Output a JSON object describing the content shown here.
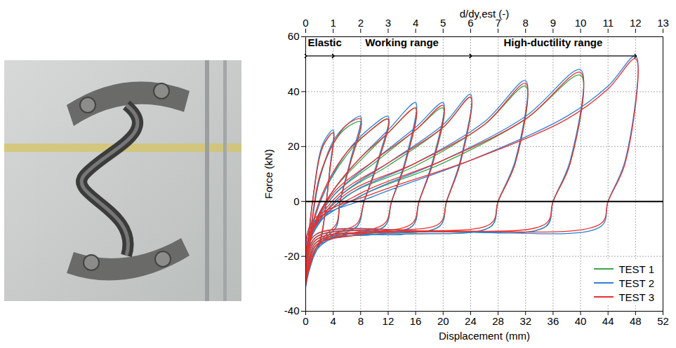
{
  "chart_data": {
    "type": "line",
    "xlabel": "Displacement (mm)",
    "ylabel": "Force (kN)",
    "x2label": "d/dy,est (-)",
    "xlim": [
      0,
      52
    ],
    "xticks": [
      0,
      4,
      8,
      12,
      16,
      20,
      24,
      28,
      32,
      36,
      40,
      44,
      48,
      52
    ],
    "x2lim": [
      0,
      13
    ],
    "x2ticks": [
      0,
      1,
      2,
      3,
      4,
      5,
      6,
      7,
      8,
      9,
      10,
      11,
      12,
      13
    ],
    "ylim": [
      -40,
      60
    ],
    "yticks": [
      -40,
      -20,
      0,
      20,
      40,
      60
    ],
    "grid": true,
    "legend": "bottom-right",
    "annotations": [
      {
        "text": "Elastic",
        "from": 0,
        "to": 4,
        "y": 53
      },
      {
        "text": "Working range",
        "from": 4,
        "to": 24,
        "y": 53
      },
      {
        "text": "High-ductility range",
        "from": 24,
        "to": 48,
        "y": 53
      }
    ],
    "series": [
      {
        "name": "TEST 1",
        "color": "#3aa64a",
        "values": [
          [
            0,
            -25
          ],
          [
            1,
            0
          ],
          [
            2.5,
            20
          ],
          [
            4,
            25
          ],
          [
            3.5,
            11
          ],
          [
            3,
            0
          ],
          [
            2.2,
            -13
          ],
          [
            1,
            -20
          ],
          [
            0,
            -27
          ],
          [
            1,
            -6
          ],
          [
            2,
            8
          ],
          [
            4,
            21
          ],
          [
            6,
            27
          ],
          [
            8,
            29
          ],
          [
            6.5,
            14
          ],
          [
            5,
            0
          ],
          [
            4.5,
            -9
          ],
          [
            3,
            -13
          ],
          [
            1.5,
            -17
          ],
          [
            0,
            -28
          ],
          [
            1,
            -9
          ],
          [
            3,
            5
          ],
          [
            6,
            17
          ],
          [
            9,
            25
          ],
          [
            12,
            30
          ],
          [
            10.5,
            14
          ],
          [
            8.5,
            0
          ],
          [
            7.5,
            -9
          ],
          [
            4,
            -12
          ],
          [
            1.5,
            -17
          ],
          [
            0,
            -29
          ],
          [
            1,
            -10
          ],
          [
            4,
            4
          ],
          [
            8,
            15
          ],
          [
            12,
            25
          ],
          [
            16,
            34
          ],
          [
            14.5,
            14
          ],
          [
            12.5,
            0
          ],
          [
            11.5,
            -9
          ],
          [
            6,
            -12
          ],
          [
            1.5,
            -16
          ],
          [
            0,
            -30
          ],
          [
            1,
            -11
          ],
          [
            4,
            2
          ],
          [
            10,
            14
          ],
          [
            16,
            26
          ],
          [
            20,
            34
          ],
          [
            18.5,
            14
          ],
          [
            16.5,
            0
          ],
          [
            15.5,
            -9
          ],
          [
            8,
            -12
          ],
          [
            1.5,
            -16
          ],
          [
            0,
            -30
          ],
          [
            1,
            -12
          ],
          [
            5,
            2
          ],
          [
            12,
            13
          ],
          [
            20,
            27
          ],
          [
            24,
            38
          ],
          [
            22.5,
            14
          ],
          [
            20.5,
            0
          ],
          [
            19.5,
            -9
          ],
          [
            10,
            -12
          ],
          [
            1.5,
            -15
          ],
          [
            0,
            -29
          ],
          [
            1,
            -12
          ],
          [
            6,
            2
          ],
          [
            16,
            13
          ],
          [
            26,
            28
          ],
          [
            32,
            42
          ],
          [
            30.5,
            14
          ],
          [
            28,
            0
          ],
          [
            27,
            -9
          ],
          [
            14,
            -12
          ],
          [
            1.5,
            -14
          ],
          [
            0,
            -25
          ],
          [
            1,
            -10
          ],
          [
            8,
            2
          ],
          [
            20,
            14
          ],
          [
            32,
            30
          ],
          [
            40,
            46
          ],
          [
            38.5,
            14
          ],
          [
            36,
            0
          ],
          [
            35,
            -9
          ],
          [
            18,
            -11
          ],
          [
            1.5,
            -13
          ],
          [
            0,
            -22
          ]
        ]
      },
      {
        "name": "TEST 2",
        "color": "#2f7fd8",
        "values": [
          [
            0,
            -26
          ],
          [
            1,
            0
          ],
          [
            2.5,
            21
          ],
          [
            4,
            26
          ],
          [
            3.5,
            12
          ],
          [
            3,
            0
          ],
          [
            2.2,
            -14
          ],
          [
            1,
            -21
          ],
          [
            0,
            -28
          ],
          [
            1,
            -6
          ],
          [
            2,
            8
          ],
          [
            4,
            22
          ],
          [
            6,
            28
          ],
          [
            8,
            31
          ],
          [
            6.5,
            15
          ],
          [
            5,
            0
          ],
          [
            4.5,
            -9
          ],
          [
            3,
            -13
          ],
          [
            1.5,
            -18
          ],
          [
            0,
            -29
          ],
          [
            1,
            -9
          ],
          [
            3,
            5
          ],
          [
            6,
            18
          ],
          [
            9,
            26
          ],
          [
            12,
            31
          ],
          [
            10.5,
            15
          ],
          [
            8.5,
            0
          ],
          [
            7.5,
            -9
          ],
          [
            4,
            -13
          ],
          [
            1.5,
            -18
          ],
          [
            0,
            -30
          ],
          [
            1,
            -10
          ],
          [
            4,
            4
          ],
          [
            8,
            16
          ],
          [
            12,
            26
          ],
          [
            16,
            36
          ],
          [
            14.5,
            15
          ],
          [
            12.5,
            0
          ],
          [
            11.5,
            -9
          ],
          [
            6,
            -12
          ],
          [
            1.5,
            -17
          ],
          [
            0,
            -31
          ],
          [
            1,
            -11
          ],
          [
            4,
            2
          ],
          [
            10,
            15
          ],
          [
            16,
            27
          ],
          [
            20,
            36
          ],
          [
            18.5,
            15
          ],
          [
            16.5,
            0
          ],
          [
            15.5,
            -9
          ],
          [
            8,
            -12
          ],
          [
            1.5,
            -16
          ],
          [
            0,
            -31
          ],
          [
            1,
            -12
          ],
          [
            5,
            2
          ],
          [
            12,
            14
          ],
          [
            20,
            28
          ],
          [
            24,
            39
          ],
          [
            22.5,
            15
          ],
          [
            20.5,
            0
          ],
          [
            19.5,
            -9
          ],
          [
            10,
            -12
          ],
          [
            1.5,
            -15
          ],
          [
            0,
            -30
          ],
          [
            1,
            -12
          ],
          [
            6,
            2
          ],
          [
            16,
            14
          ],
          [
            26,
            29
          ],
          [
            32,
            44
          ],
          [
            30.5,
            15
          ],
          [
            28,
            0
          ],
          [
            27,
            -9
          ],
          [
            14,
            -12
          ],
          [
            1.5,
            -14
          ],
          [
            0,
            -26
          ],
          [
            1,
            -10
          ],
          [
            8,
            2
          ],
          [
            20,
            15
          ],
          [
            32,
            31
          ],
          [
            40,
            48
          ],
          [
            38.5,
            15
          ],
          [
            36,
            0
          ],
          [
            35,
            -9
          ],
          [
            18,
            -11
          ],
          [
            1.5,
            -13
          ],
          [
            0,
            -23
          ],
          [
            1,
            -8
          ],
          [
            10,
            2
          ],
          [
            24,
            15
          ],
          [
            38,
            31
          ],
          [
            44,
            42
          ],
          [
            48,
            53
          ],
          [
            46.5,
            15
          ],
          [
            44,
            0
          ],
          [
            43,
            -9
          ],
          [
            22,
            -11
          ],
          [
            1.5,
            -12
          ],
          [
            0,
            -20
          ]
        ]
      },
      {
        "name": "TEST 3",
        "color": "#e8312c",
        "values": [
          [
            0,
            -24
          ],
          [
            1,
            0
          ],
          [
            2.5,
            20
          ],
          [
            4,
            25
          ],
          [
            3.5,
            11
          ],
          [
            3,
            0
          ],
          [
            2.2,
            -13
          ],
          [
            1,
            -20
          ],
          [
            0,
            -27
          ],
          [
            1,
            -5
          ],
          [
            2,
            9
          ],
          [
            4,
            21
          ],
          [
            6,
            28
          ],
          [
            8,
            30
          ],
          [
            6.5,
            14
          ],
          [
            5,
            0
          ],
          [
            4.5,
            -8
          ],
          [
            3,
            -12
          ],
          [
            1.5,
            -17
          ],
          [
            0,
            -28
          ],
          [
            1,
            -8
          ],
          [
            3,
            6
          ],
          [
            6,
            18
          ],
          [
            9,
            25
          ],
          [
            12,
            30
          ],
          [
            10.5,
            14
          ],
          [
            8.5,
            0
          ],
          [
            7.5,
            -8
          ],
          [
            4,
            -12
          ],
          [
            1.5,
            -17
          ],
          [
            0,
            -29
          ],
          [
            1,
            -10
          ],
          [
            4,
            4
          ],
          [
            8,
            16
          ],
          [
            12,
            25
          ],
          [
            16,
            34
          ],
          [
            14.5,
            14
          ],
          [
            12.5,
            0
          ],
          [
            11.5,
            -8
          ],
          [
            6,
            -12
          ],
          [
            1.5,
            -16
          ],
          [
            0,
            -30
          ],
          [
            1,
            -11
          ],
          [
            4,
            3
          ],
          [
            10,
            15
          ],
          [
            16,
            26
          ],
          [
            20,
            35
          ],
          [
            18.5,
            14
          ],
          [
            16.5,
            0
          ],
          [
            15.5,
            -8
          ],
          [
            8,
            -12
          ],
          [
            1.5,
            -16
          ],
          [
            0,
            -30
          ],
          [
            1,
            -11
          ],
          [
            5,
            3
          ],
          [
            12,
            14
          ],
          [
            20,
            27
          ],
          [
            24,
            38
          ],
          [
            22.5,
            14
          ],
          [
            20.5,
            0
          ],
          [
            19.5,
            -8
          ],
          [
            10,
            -11
          ],
          [
            1.5,
            -15
          ],
          [
            0,
            -29
          ],
          [
            1,
            -11
          ],
          [
            6,
            3
          ],
          [
            16,
            14
          ],
          [
            26,
            28
          ],
          [
            32,
            43
          ],
          [
            30.5,
            14
          ],
          [
            28,
            0
          ],
          [
            27,
            -8
          ],
          [
            14,
            -11
          ],
          [
            1.5,
            -14
          ],
          [
            0,
            -25
          ],
          [
            1,
            -9
          ],
          [
            8,
            3
          ],
          [
            20,
            15
          ],
          [
            32,
            30
          ],
          [
            40,
            47
          ],
          [
            38.5,
            14
          ],
          [
            36,
            0
          ],
          [
            35,
            -8
          ],
          [
            18,
            -11
          ],
          [
            1.5,
            -13
          ],
          [
            0,
            -22
          ],
          [
            1,
            -7
          ],
          [
            10,
            3
          ],
          [
            24,
            15
          ],
          [
            38,
            30
          ],
          [
            44,
            41
          ],
          [
            48,
            52
          ],
          [
            46.5,
            14
          ],
          [
            44,
            0
          ],
          [
            43,
            -8
          ],
          [
            22,
            -11
          ],
          [
            1.5,
            -12
          ],
          [
            0,
            -19
          ]
        ]
      }
    ]
  }
}
